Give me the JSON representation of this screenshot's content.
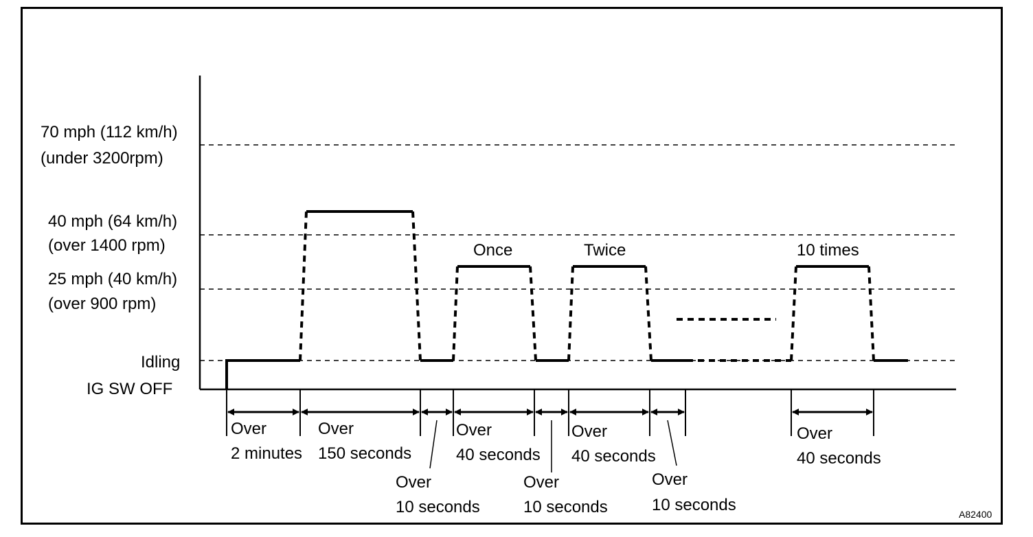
{
  "y_levels": [
    {
      "line1": "70 mph (112 km/h)",
      "line2": "(under 3200rpm)"
    },
    {
      "line1": "40 mph (64 km/h)",
      "line2": "(over 1400 rpm)"
    },
    {
      "line1": "25 mph (40 km/h)",
      "line2": "(over 900 rpm)"
    },
    {
      "line1": "Idling",
      "line2": ""
    },
    {
      "line1": "IG SW OFF",
      "line2": ""
    }
  ],
  "cycle_labels": {
    "once": "Once",
    "twice": "Twice",
    "ten": "10 times"
  },
  "durations": [
    {
      "line1": "Over",
      "line2": "2 minutes"
    },
    {
      "line1": "Over",
      "line2": "150 seconds"
    },
    {
      "line1": "Over",
      "line2": "10 seconds"
    },
    {
      "line1": "Over",
      "line2": "40 seconds"
    },
    {
      "line1": "Over",
      "line2": "10 seconds"
    },
    {
      "line1": "Over",
      "line2": "40 seconds"
    },
    {
      "line1": "Over",
      "line2": "10 seconds"
    },
    {
      "line1": "Over",
      "line2": "40 seconds"
    }
  ],
  "figure_code": "A82400"
}
